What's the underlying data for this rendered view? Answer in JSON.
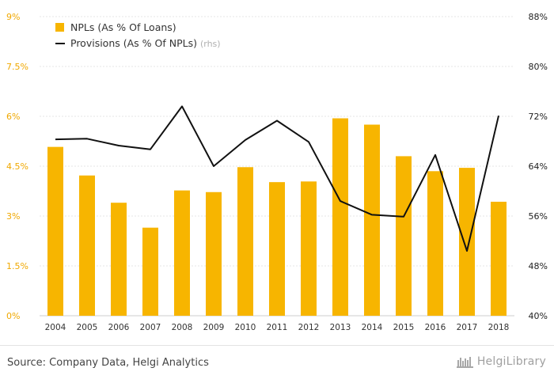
{
  "chart_data": {
    "type": "bar+line",
    "categories": [
      "2004",
      "2005",
      "2006",
      "2007",
      "2008",
      "2009",
      "2010",
      "2011",
      "2012",
      "2013",
      "2014",
      "2015",
      "2016",
      "2017",
      "2018"
    ],
    "series": [
      {
        "name": "NPLs (As % Of Loans)",
        "type": "bar",
        "axis": "left",
        "values": [
          5.08,
          4.22,
          3.4,
          2.65,
          3.77,
          3.72,
          4.47,
          4.02,
          4.04,
          5.94,
          5.75,
          4.8,
          4.35,
          4.45,
          3.43
        ],
        "color": "#f7b500"
      },
      {
        "name": "Provisions (As % Of NPLs)",
        "type": "line",
        "axis": "right",
        "values": [
          68.3,
          68.4,
          67.3,
          66.7,
          73.6,
          64.0,
          68.2,
          71.3,
          67.9,
          58.4,
          56.2,
          55.9,
          65.8,
          50.4,
          72.1
        ],
        "color": "#111111"
      }
    ],
    "legend": {
      "placement": "top-left",
      "rhs_note": "(rhs)"
    },
    "y_left": {
      "ylim": [
        0,
        9
      ],
      "ticks": [
        0,
        1.5,
        3,
        4.5,
        6,
        7.5,
        9
      ],
      "tick_labels": [
        "0%",
        "1.5%",
        "3%",
        "4.5%",
        "6%",
        "7.5%",
        "9%"
      ]
    },
    "y_right": {
      "ylim": [
        40,
        88
      ],
      "ticks": [
        40,
        48,
        56,
        64,
        72,
        80,
        88
      ],
      "tick_labels": [
        "40%",
        "48%",
        "56%",
        "64%",
        "72%",
        "80%",
        "88%"
      ]
    },
    "grid": true
  },
  "footer": {
    "source": "Source: Company Data, Helgi Analytics",
    "brand": "HelgiLibrary"
  }
}
